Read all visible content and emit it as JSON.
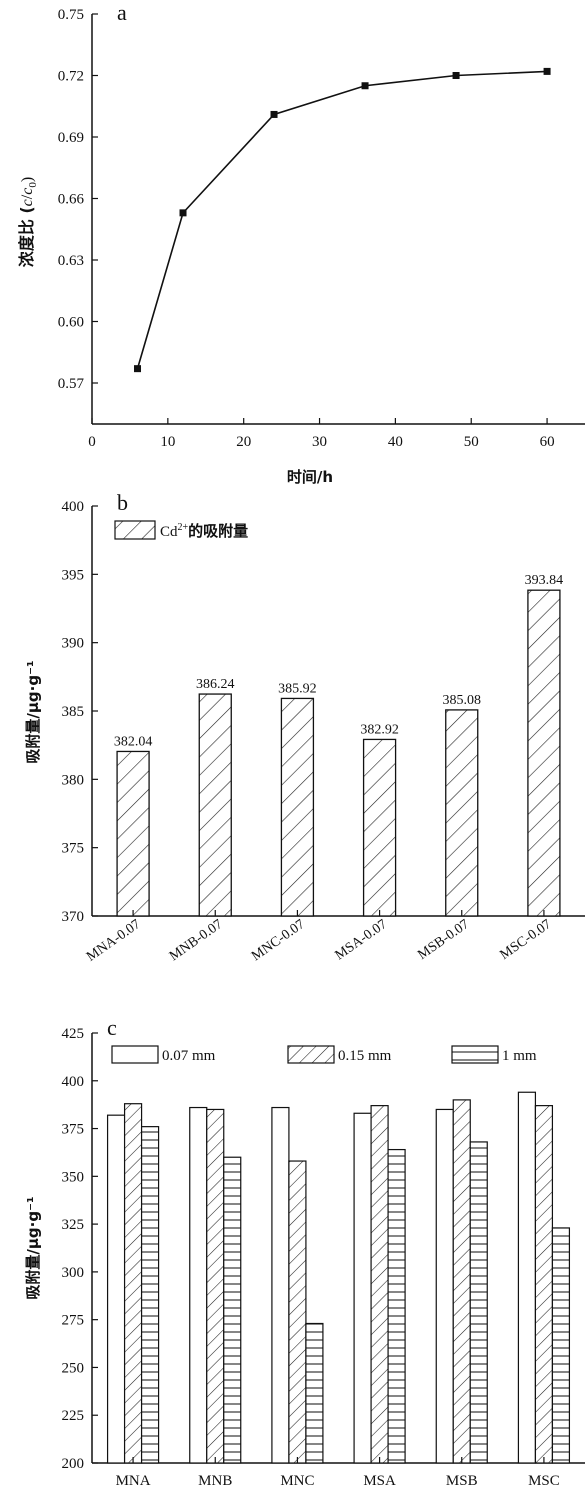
{
  "chart_data": [
    {
      "panel": "a",
      "type": "line",
      "panel_label": "a",
      "xlabel": "时间/h",
      "ylabel_main": "浓度比 (",
      "ylabel_c": "c",
      "ylabel_slash": "/",
      "ylabel_c0": "c",
      "ylabel_sub": "0",
      "ylabel_close": ")",
      "xlim": [
        0,
        65
      ],
      "ylim": [
        0.55,
        0.75
      ],
      "x_ticks": [
        "0",
        "10",
        "20",
        "30",
        "40",
        "50",
        "60"
      ],
      "y_ticks": [
        "0.57",
        "0.60",
        "0.63",
        "0.66",
        "0.69",
        "0.72",
        "0.75"
      ],
      "series": [
        {
          "x": [
            6,
            12,
            24,
            36,
            48,
            60
          ],
          "y": [
            0.577,
            0.653,
            0.701,
            0.715,
            0.72,
            0.722
          ]
        }
      ]
    },
    {
      "panel": "b",
      "type": "bar",
      "panel_label": "b",
      "ylabel": "吸附量/μg·g⁻¹",
      "ylim": [
        370,
        400
      ],
      "y_ticks": [
        "370",
        "375",
        "380",
        "385",
        "390",
        "395",
        "400"
      ],
      "legend": {
        "label_pre": "Cd",
        "label_sup": "2+",
        "label_post": "的吸附量"
      },
      "categories": [
        "MNA-0.07",
        "MNB-0.07",
        "MNC-0.07",
        "MSA-0.07",
        "MSB-0.07",
        "MSC-0.07"
      ],
      "values": [
        382.04,
        386.24,
        385.92,
        382.92,
        385.08,
        393.84
      ],
      "value_labels": [
        "382.04",
        "386.24",
        "385.92",
        "382.92",
        "385.08",
        "393.84"
      ]
    },
    {
      "panel": "c",
      "type": "bar",
      "panel_label": "c",
      "ylabel": "吸附量/μg·g⁻¹",
      "ylim": [
        200,
        425
      ],
      "y_ticks": [
        "200",
        "225",
        "250",
        "275",
        "300",
        "325",
        "350",
        "375",
        "400",
        "425"
      ],
      "categories": [
        "MNA",
        "MNB",
        "MNC",
        "MSA",
        "MSB",
        "MSC"
      ],
      "series": [
        {
          "name": "0.07 mm",
          "fill": "open",
          "values": [
            382,
            386,
            386,
            383,
            385,
            394
          ]
        },
        {
          "name": "0.15 mm",
          "fill": "hatch",
          "values": [
            388,
            385,
            358,
            387,
            390,
            387
          ]
        },
        {
          "name": "1 mm",
          "fill": "hlines",
          "values": [
            376,
            360,
            273,
            364,
            368,
            323
          ]
        }
      ]
    }
  ]
}
